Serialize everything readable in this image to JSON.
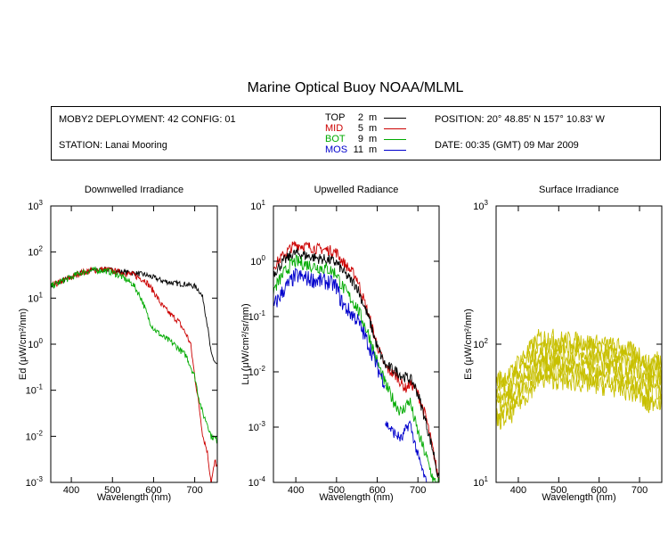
{
  "title": "Marine Optical Buoy NOAA/MLML",
  "info": {
    "deployment": "MOBY2 DEPLOYMENT: 42 CONFIG: 01",
    "station": "STATION: Lanai Mooring",
    "position": "POSITION: 20° 48.85' N   157° 10.83' W",
    "date": "DATE: 00:35 (GMT) 09 Mar 2009",
    "depths": [
      {
        "name": "TOP",
        "depth": "2",
        "unit": "m",
        "color": "#000000"
      },
      {
        "name": "MID",
        "depth": "5",
        "unit": "m",
        "color": "#cc0000"
      },
      {
        "name": "BOT",
        "depth": "9",
        "unit": "m",
        "color": "#00aa00"
      },
      {
        "name": "MOS",
        "depth": "11",
        "unit": "m",
        "color": "#0000cc"
      }
    ]
  },
  "chart_data": [
    {
      "type": "line",
      "title": "Downwelled Irradiance",
      "xlabel": "Wavelength (nm)",
      "ylabel": "Ed  (μW/cm²/nm)",
      "xlim": [
        350,
        755
      ],
      "ylim_log10": [
        -3,
        3
      ],
      "yscale": "log",
      "xticks": [
        400,
        500,
        600,
        700
      ],
      "yticks_exp": [
        -3,
        -2,
        -1,
        0,
        1,
        2,
        3
      ],
      "series": [
        {
          "color": "#000000",
          "noise": 0.06,
          "x": [
            350,
            380,
            400,
            420,
            450,
            480,
            500,
            520,
            550,
            580,
            600,
            620,
            650,
            680,
            700,
            710,
            720,
            730,
            740,
            750,
            755
          ],
          "y": [
            18,
            24,
            28,
            35,
            40,
            42,
            40,
            37,
            35,
            32,
            28,
            24,
            21,
            20,
            18,
            15,
            10,
            3,
            0.6,
            0.4,
            0.35
          ]
        },
        {
          "color": "#cc0000",
          "noise": 0.07,
          "x": [
            350,
            380,
            400,
            420,
            450,
            480,
            500,
            520,
            550,
            580,
            600,
            620,
            640,
            660,
            680,
            690,
            700,
            710,
            720,
            730,
            740,
            750,
            755
          ],
          "y": [
            18,
            24,
            28,
            35,
            40,
            42,
            39,
            36,
            32,
            24,
            14,
            7,
            4.5,
            3.2,
            1.6,
            1.0,
            0.2,
            0.05,
            0.01,
            0.005,
            0.001,
            0.003,
            0.002
          ]
        },
        {
          "color": "#00aa00",
          "noise": 0.07,
          "x": [
            350,
            380,
            400,
            420,
            450,
            480,
            500,
            520,
            550,
            570,
            590,
            600,
            620,
            650,
            680,
            700,
            710,
            720,
            730,
            740,
            750,
            755
          ],
          "y": [
            18,
            24,
            28,
            35,
            40,
            40,
            36,
            30,
            20,
            10,
            3.2,
            2.2,
            1.5,
            1.0,
            0.55,
            0.2,
            0.07,
            0.03,
            0.02,
            0.01,
            0.009,
            0.008
          ]
        }
      ]
    },
    {
      "type": "line",
      "title": "Upwelled Radiance",
      "xlabel": "Wavelength (nm)",
      "ylabel": "Lu  (μW/cm²/sr/nm)",
      "xlim": [
        345,
        752
      ],
      "ylim_log10": [
        -4,
        1
      ],
      "yscale": "log",
      "xticks": [
        400,
        500,
        600,
        700
      ],
      "yticks_exp": [
        -4,
        -3,
        -2,
        -1,
        0,
        1
      ],
      "series": [
        {
          "color": "#cc0000",
          "noise": 0.1,
          "x": [
            345,
            370,
            390,
            400,
            420,
            450,
            480,
            500,
            510,
            520,
            550,
            580,
            600,
            620,
            650,
            660,
            670,
            680,
            690,
            700,
            720,
            740,
            752
          ],
          "y": [
            0.8,
            1.3,
            1.8,
            2.0,
            1.9,
            1.7,
            1.6,
            1.45,
            1.1,
            0.9,
            0.5,
            0.1,
            0.03,
            0.012,
            0.008,
            0.006,
            0.005,
            0.006,
            0.0055,
            0.004,
            0.0015,
            0.0003,
            0.0001
          ]
        },
        {
          "color": "#000000",
          "noise": 0.1,
          "x": [
            345,
            370,
            390,
            400,
            420,
            450,
            480,
            500,
            510,
            520,
            550,
            580,
            600,
            620,
            650,
            660,
            670,
            680,
            690,
            700,
            720,
            740,
            752
          ],
          "y": [
            0.6,
            1.0,
            1.3,
            1.4,
            1.3,
            1.15,
            1.05,
            0.95,
            0.75,
            0.6,
            0.35,
            0.09,
            0.028,
            0.013,
            0.01,
            0.0085,
            0.008,
            0.0075,
            0.006,
            0.004,
            0.0012,
            0.0003,
            0.0001
          ]
        },
        {
          "color": "#00aa00",
          "noise": 0.12,
          "x": [
            345,
            370,
            390,
            400,
            420,
            450,
            480,
            500,
            510,
            520,
            550,
            580,
            600,
            620,
            640,
            660,
            670,
            680,
            690,
            700,
            720,
            740,
            752
          ],
          "y": [
            0.3,
            0.6,
            0.9,
            1.0,
            0.9,
            0.8,
            0.72,
            0.6,
            0.4,
            0.3,
            0.15,
            0.045,
            0.015,
            0.006,
            0.003,
            0.0018,
            0.0025,
            0.003,
            0.0015,
            0.0008,
            0.0003,
            0.0001,
            0.0001
          ]
        },
        {
          "color": "#0000cc",
          "noise": 0.15,
          "x": [
            345,
            370,
            390,
            400,
            420,
            450,
            480,
            500,
            510,
            520,
            550,
            580,
            600,
            620
          ],
          "y": [
            0.15,
            0.3,
            0.45,
            0.55,
            0.5,
            0.45,
            0.42,
            0.35,
            0.2,
            0.15,
            0.09,
            0.03,
            0.012,
            0.006
          ]
        },
        {
          "color": "#0000cc",
          "noise": 0.1,
          "x": [
            620,
            640,
            660,
            670,
            680,
            690,
            700,
            720,
            740
          ],
          "y": [
            0.0012,
            0.0008,
            0.0006,
            0.0009,
            0.0012,
            0.0006,
            0.0003,
            0.0001,
            4e-05
          ]
        }
      ]
    },
    {
      "type": "line",
      "title": "Surface Irradiance",
      "xlabel": "Wavelength (nm)",
      "ylabel": "Es  (μW/cm²/nm)",
      "xlim": [
        345,
        755
      ],
      "ylim_log10": [
        1,
        3
      ],
      "yscale": "log",
      "xticks": [
        400,
        500,
        600,
        700
      ],
      "yticks_exp": [
        1,
        2,
        3
      ],
      "series": [
        {
          "color": "#c8c000",
          "noise": 0.07,
          "scale": 1.0,
          "x": [
            345,
            380,
            400,
            420,
            450,
            480,
            500,
            550,
            600,
            650,
            700,
            720,
            740,
            755
          ],
          "y": [
            55,
            60,
            75,
            85,
            110,
            112,
            108,
            105,
            100,
            95,
            85,
            70,
            80,
            75
          ]
        },
        {
          "color": "#c8c000",
          "noise": 0.07,
          "scale": 0.88,
          "x": [
            345,
            380,
            400,
            420,
            450,
            480,
            500,
            550,
            600,
            650,
            700,
            720,
            740,
            755
          ],
          "y": [
            55,
            60,
            75,
            85,
            110,
            112,
            108,
            105,
            100,
            95,
            85,
            70,
            80,
            75
          ]
        },
        {
          "color": "#c8c000",
          "noise": 0.07,
          "scale": 0.77,
          "x": [
            345,
            380,
            400,
            420,
            450,
            480,
            500,
            550,
            600,
            650,
            700,
            720,
            740,
            755
          ],
          "y": [
            55,
            60,
            75,
            85,
            110,
            112,
            108,
            105,
            100,
            95,
            85,
            70,
            80,
            75
          ]
        },
        {
          "color": "#c8c000",
          "noise": 0.07,
          "scale": 0.67,
          "x": [
            345,
            380,
            400,
            420,
            450,
            480,
            500,
            550,
            600,
            650,
            700,
            720,
            740,
            755
          ],
          "y": [
            55,
            60,
            75,
            85,
            110,
            112,
            108,
            105,
            100,
            95,
            85,
            70,
            80,
            75
          ]
        },
        {
          "color": "#c8c000",
          "noise": 0.07,
          "scale": 0.58,
          "x": [
            345,
            380,
            400,
            420,
            450,
            480,
            500,
            550,
            600,
            650,
            700,
            720,
            740,
            755
          ],
          "y": [
            55,
            60,
            75,
            85,
            110,
            112,
            108,
            105,
            100,
            95,
            85,
            70,
            80,
            75
          ]
        },
        {
          "color": "#c8c000",
          "noise": 0.07,
          "scale": 0.5,
          "x": [
            345,
            380,
            400,
            420,
            450,
            480,
            500,
            550,
            600,
            650,
            700,
            720,
            740,
            755
          ],
          "y": [
            55,
            60,
            75,
            85,
            110,
            112,
            108,
            105,
            100,
            95,
            85,
            70,
            80,
            75
          ]
        }
      ]
    }
  ]
}
